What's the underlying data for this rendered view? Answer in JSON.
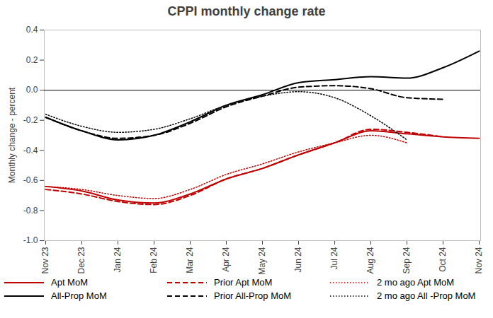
{
  "chart_data": {
    "type": "line",
    "title": "CPPI monthly change rate",
    "y_label": "Monthly change - percent",
    "categories": [
      "Nov 23",
      "Dec 23",
      "Jan 24",
      "Feb 24",
      "Mar 24",
      "Apr 24",
      "May 24",
      "Jun 24",
      "Jul 24",
      "Aug 24",
      "Sep 24",
      "Oct 24",
      "Nov 24"
    ],
    "ylim": [
      -1.0,
      0.4
    ],
    "yticks": [
      {
        "value": -1.0,
        "label": "-1.0"
      },
      -0.8,
      -0.6,
      -0.4,
      -0.2,
      {
        "value": 0,
        "label": "0.0"
      },
      0.2,
      0.4
    ],
    "grid": false,
    "legend": "bottom",
    "series": [
      {
        "name": "Apt MoM",
        "color": "#c00000",
        "line_style": "solid",
        "values": [
          -0.64,
          -0.67,
          -0.73,
          -0.75,
          -0.69,
          -0.59,
          -0.52,
          -0.43,
          -0.35,
          -0.27,
          -0.29,
          -0.31,
          -0.32
        ]
      },
      {
        "name": "Prior Apt MoM",
        "color": "#c00000",
        "line_style": "dashed",
        "values": [
          -0.66,
          -0.69,
          -0.74,
          -0.76,
          -0.7,
          -0.59,
          -0.52,
          -0.43,
          -0.35,
          -0.26,
          -0.28,
          -0.31,
          null
        ]
      },
      {
        "name": "2 mo ago Apt MoM",
        "color": "#c00000",
        "line_style": "dotted",
        "values": [
          -0.64,
          -0.66,
          -0.7,
          -0.72,
          -0.66,
          -0.56,
          -0.49,
          -0.41,
          -0.35,
          -0.3,
          -0.35,
          null,
          null
        ]
      },
      {
        "name": "All-Prop MoM",
        "color": "#000000",
        "line_style": "solid",
        "values": [
          -0.18,
          -0.27,
          -0.33,
          -0.3,
          -0.21,
          -0.1,
          -0.03,
          0.05,
          0.07,
          0.09,
          0.08,
          0.15,
          0.26
        ]
      },
      {
        "name": "Prior All-Prop MoM",
        "color": "#000000",
        "line_style": "dashed",
        "values": [
          -0.18,
          -0.27,
          -0.32,
          -0.3,
          -0.22,
          -0.11,
          -0.04,
          0.02,
          0.03,
          0.01,
          -0.05,
          -0.06,
          null
        ]
      },
      {
        "name": "2 mo ago All -Prop MoM",
        "color": "#000000",
        "line_style": "dotted",
        "values": [
          -0.16,
          -0.24,
          -0.28,
          -0.26,
          -0.19,
          -0.1,
          -0.04,
          -0.01,
          -0.05,
          -0.17,
          -0.33,
          null,
          null
        ]
      }
    ]
  }
}
